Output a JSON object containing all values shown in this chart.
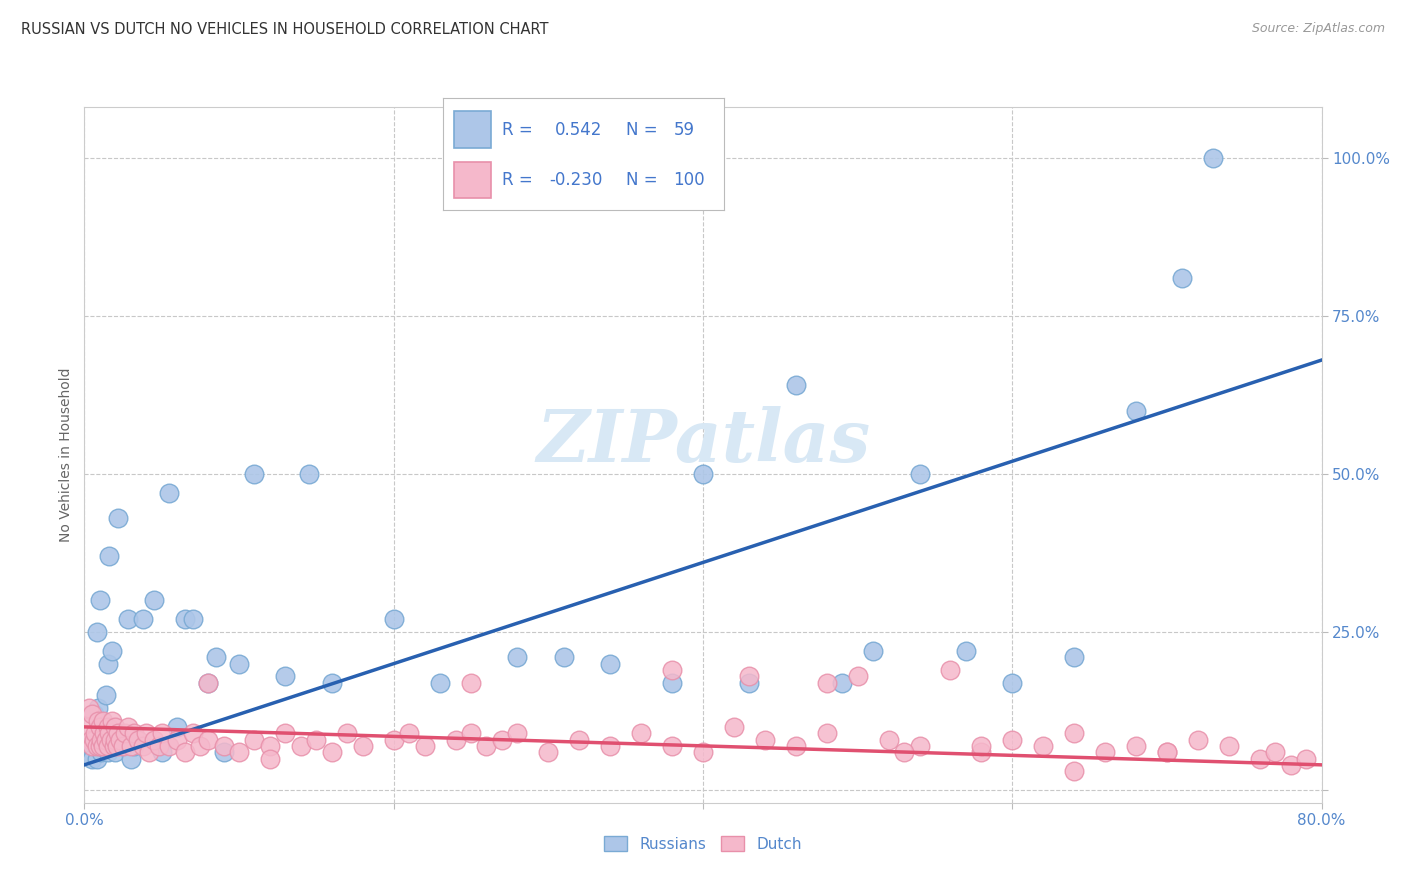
{
  "title": "RUSSIAN VS DUTCH NO VEHICLES IN HOUSEHOLD CORRELATION CHART",
  "source": "Source: ZipAtlas.com",
  "ylabel": "No Vehicles in Household",
  "xlim": [
    0.0,
    0.8
  ],
  "ylim": [
    -0.02,
    1.08
  ],
  "ytick_positions": [
    0.0,
    0.25,
    0.5,
    0.75,
    1.0
  ],
  "yticklabels": [
    "",
    "25.0%",
    "50.0%",
    "75.0%",
    "100.0%"
  ],
  "xtick_positions": [
    0.0,
    0.2,
    0.4,
    0.6,
    0.8
  ],
  "xticklabels": [
    "0.0%",
    "",
    "",
    "",
    "80.0%"
  ],
  "russian_R": 0.542,
  "russian_N": 59,
  "dutch_R": -0.23,
  "dutch_N": 100,
  "russian_color": "#adc6e8",
  "russian_edge_color": "#7aaad4",
  "dutch_color": "#f5b8cb",
  "dutch_edge_color": "#e890aa",
  "russian_line_color": "#2860b0",
  "dutch_line_color": "#e05070",
  "background_color": "#ffffff",
  "grid_color": "#c8c8c8",
  "watermark_color": "#d8e8f5",
  "title_color": "#333333",
  "axis_tick_color": "#5588cc",
  "legend_box_color": "#f0f0f0",
  "legend_R_color": "#4477cc",
  "watermark": "ZIPatlas",
  "russian_scatter_x": [
    0.003,
    0.004,
    0.005,
    0.006,
    0.007,
    0.008,
    0.008,
    0.009,
    0.01,
    0.01,
    0.011,
    0.012,
    0.013,
    0.014,
    0.015,
    0.015,
    0.016,
    0.016,
    0.017,
    0.018,
    0.02,
    0.022,
    0.025,
    0.028,
    0.03,
    0.032,
    0.038,
    0.045,
    0.05,
    0.055,
    0.06,
    0.065,
    0.07,
    0.08,
    0.085,
    0.09,
    0.1,
    0.11,
    0.13,
    0.145,
    0.16,
    0.2,
    0.23,
    0.28,
    0.31,
    0.34,
    0.38,
    0.4,
    0.43,
    0.46,
    0.49,
    0.51,
    0.54,
    0.57,
    0.6,
    0.64,
    0.68,
    0.71,
    0.73
  ],
  "russian_scatter_y": [
    0.06,
    0.07,
    0.05,
    0.12,
    0.08,
    0.05,
    0.25,
    0.13,
    0.07,
    0.3,
    0.06,
    0.08,
    0.1,
    0.15,
    0.06,
    0.2,
    0.07,
    0.37,
    0.08,
    0.22,
    0.06,
    0.43,
    0.07,
    0.27,
    0.05,
    0.07,
    0.27,
    0.3,
    0.06,
    0.47,
    0.1,
    0.27,
    0.27,
    0.17,
    0.21,
    0.06,
    0.2,
    0.5,
    0.18,
    0.5,
    0.17,
    0.27,
    0.17,
    0.21,
    0.21,
    0.2,
    0.17,
    0.5,
    0.17,
    0.64,
    0.17,
    0.22,
    0.5,
    0.22,
    0.17,
    0.21,
    0.6,
    0.81,
    1.0
  ],
  "dutch_scatter_x": [
    0.002,
    0.003,
    0.004,
    0.005,
    0.005,
    0.006,
    0.007,
    0.008,
    0.009,
    0.01,
    0.01,
    0.011,
    0.012,
    0.012,
    0.013,
    0.014,
    0.015,
    0.015,
    0.016,
    0.017,
    0.018,
    0.019,
    0.02,
    0.02,
    0.021,
    0.022,
    0.023,
    0.025,
    0.026,
    0.028,
    0.03,
    0.032,
    0.035,
    0.038,
    0.04,
    0.042,
    0.045,
    0.048,
    0.05,
    0.055,
    0.06,
    0.065,
    0.07,
    0.075,
    0.08,
    0.09,
    0.1,
    0.11,
    0.12,
    0.13,
    0.14,
    0.15,
    0.16,
    0.17,
    0.18,
    0.2,
    0.21,
    0.22,
    0.24,
    0.25,
    0.26,
    0.27,
    0.28,
    0.3,
    0.32,
    0.34,
    0.36,
    0.38,
    0.4,
    0.42,
    0.44,
    0.46,
    0.48,
    0.5,
    0.52,
    0.54,
    0.56,
    0.58,
    0.6,
    0.62,
    0.64,
    0.66,
    0.68,
    0.7,
    0.72,
    0.74,
    0.76,
    0.77,
    0.78,
    0.79,
    0.08,
    0.12,
    0.25,
    0.38,
    0.43,
    0.48,
    0.53,
    0.58,
    0.64,
    0.7
  ],
  "dutch_scatter_y": [
    0.1,
    0.13,
    0.08,
    0.07,
    0.12,
    0.08,
    0.09,
    0.07,
    0.11,
    0.07,
    0.1,
    0.08,
    0.07,
    0.11,
    0.09,
    0.08,
    0.07,
    0.1,
    0.09,
    0.08,
    0.11,
    0.07,
    0.08,
    0.1,
    0.07,
    0.09,
    0.08,
    0.07,
    0.09,
    0.1,
    0.07,
    0.09,
    0.08,
    0.07,
    0.09,
    0.06,
    0.08,
    0.07,
    0.09,
    0.07,
    0.08,
    0.06,
    0.09,
    0.07,
    0.08,
    0.07,
    0.06,
    0.08,
    0.07,
    0.09,
    0.07,
    0.08,
    0.06,
    0.09,
    0.07,
    0.08,
    0.09,
    0.07,
    0.08,
    0.09,
    0.07,
    0.08,
    0.09,
    0.06,
    0.08,
    0.07,
    0.09,
    0.07,
    0.06,
    0.1,
    0.08,
    0.07,
    0.09,
    0.18,
    0.08,
    0.07,
    0.19,
    0.06,
    0.08,
    0.07,
    0.09,
    0.06,
    0.07,
    0.06,
    0.08,
    0.07,
    0.05,
    0.06,
    0.04,
    0.05,
    0.17,
    0.05,
    0.17,
    0.19,
    0.18,
    0.17,
    0.06,
    0.07,
    0.03,
    0.06
  ],
  "russian_line_x0": 0.0,
  "russian_line_y0": 0.04,
  "russian_line_x1": 0.8,
  "russian_line_y1": 0.68,
  "dutch_line_x0": 0.0,
  "dutch_line_y0": 0.1,
  "dutch_line_x1": 0.8,
  "dutch_line_y1": 0.04
}
